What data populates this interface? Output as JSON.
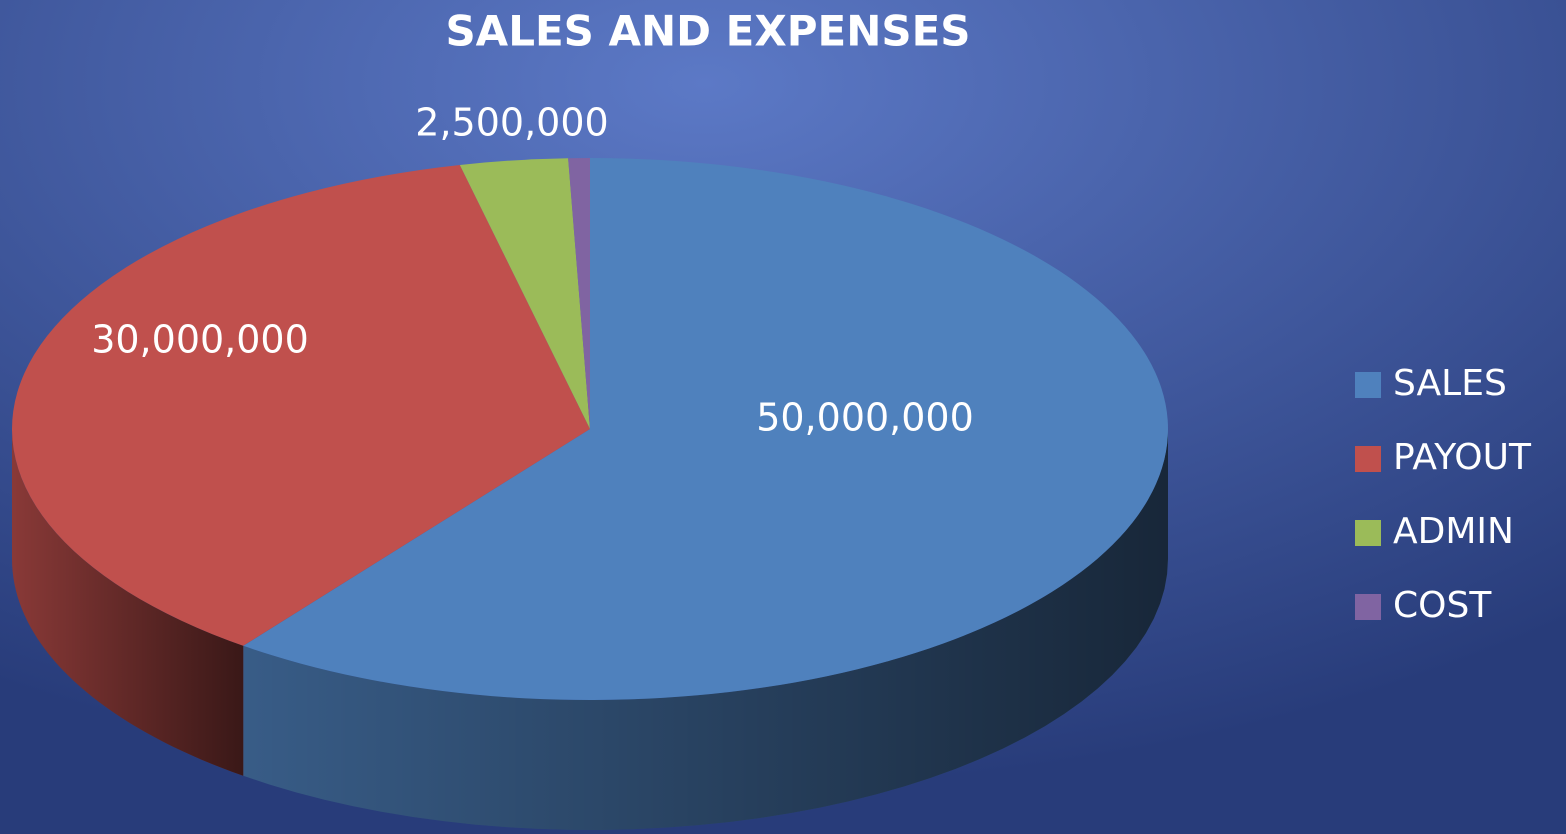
{
  "chart_data": {
    "type": "pie3d",
    "title": "SALES AND EXPENSES",
    "categories": [
      "SALES",
      "PAYOUT",
      "ADMIN",
      "COST"
    ],
    "values": [
      50000000,
      30000000,
      2500000,
      500000
    ],
    "value_labels": [
      "50,000,000",
      "30,000,000",
      "2,500,000",
      null
    ],
    "colors": [
      "#4f81bd",
      "#c0504d",
      "#9bbb59",
      "#8064a2"
    ],
    "legend": "right"
  }
}
